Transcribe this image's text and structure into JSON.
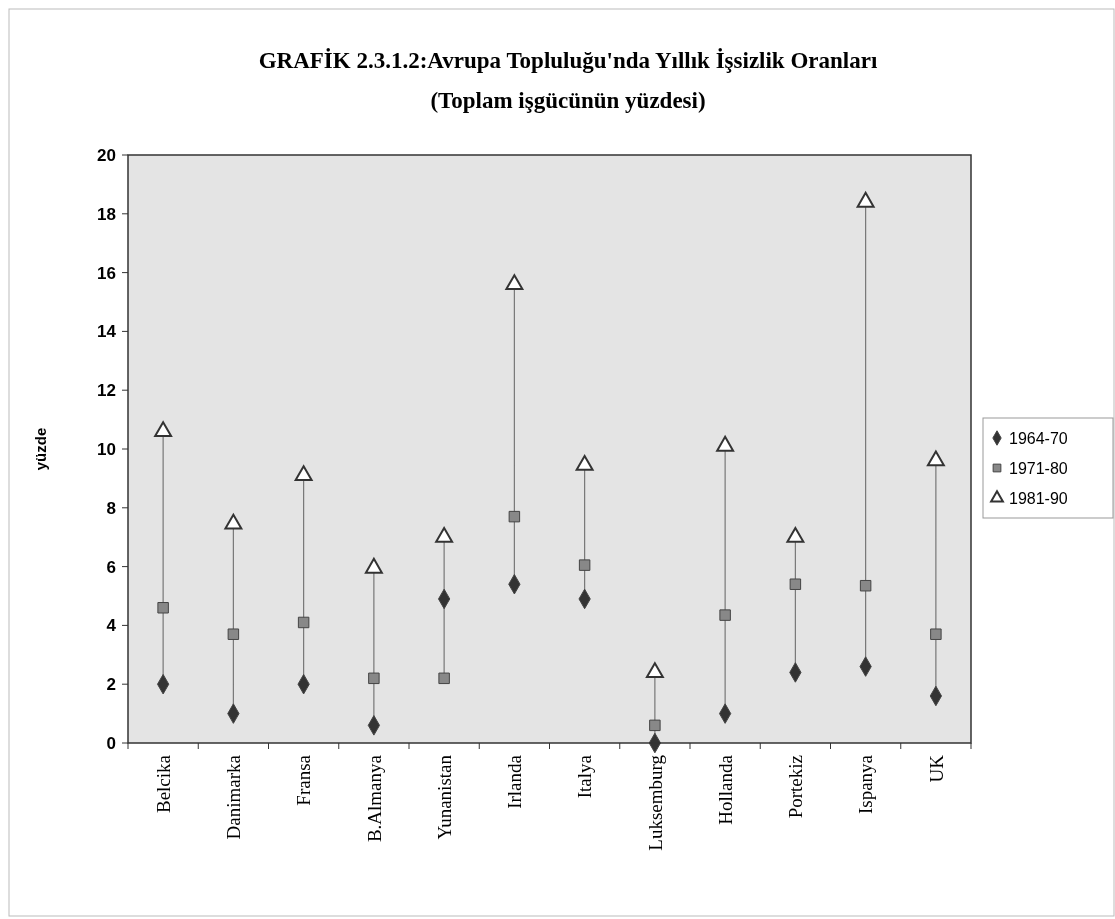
{
  "chart_data": {
    "type": "scatter",
    "title": "GRAFİK 2.3.1.2:Avrupa Topluluğu'nda Yıllık İşsizlik Oranları",
    "subtitle": "(Toplam işgücünün yüzdesi)",
    "ylabel": "yüzde",
    "categories": [
      "Belcika",
      "Danimarka",
      "Fransa",
      "B.Almanya",
      "Yunanistan",
      "Irlanda",
      "Italya",
      "Luksemburg",
      "Hollanda",
      "Portekiz",
      "Ispanya",
      "UK"
    ],
    "series": [
      {
        "name": "1964-70",
        "color": "#333333",
        "marker": "diamond",
        "values": [
          2.0,
          1.0,
          2.0,
          0.6,
          4.9,
          5.4,
          4.9,
          0,
          1.0,
          2.4,
          2.6,
          1.6
        ]
      },
      {
        "name": "1971-80",
        "color": "#888888",
        "marker": "square",
        "values": [
          4.6,
          3.7,
          4.1,
          2.2,
          2.2,
          7.7,
          6.05,
          0.6,
          4.35,
          5.4,
          5.35,
          3.7
        ]
      },
      {
        "name": "1981-90",
        "color": "#333333",
        "marker": "triangle",
        "values": [
          10.6,
          7.45,
          9.1,
          5.95,
          7.0,
          15.6,
          9.45,
          2.4,
          10.1,
          7.0,
          18.4,
          9.6
        ]
      }
    ],
    "ylim": [
      0,
      20
    ],
    "yticks": [
      0,
      2,
      4,
      6,
      8,
      10,
      12,
      14,
      16,
      18,
      20
    ],
    "legend": "right"
  }
}
